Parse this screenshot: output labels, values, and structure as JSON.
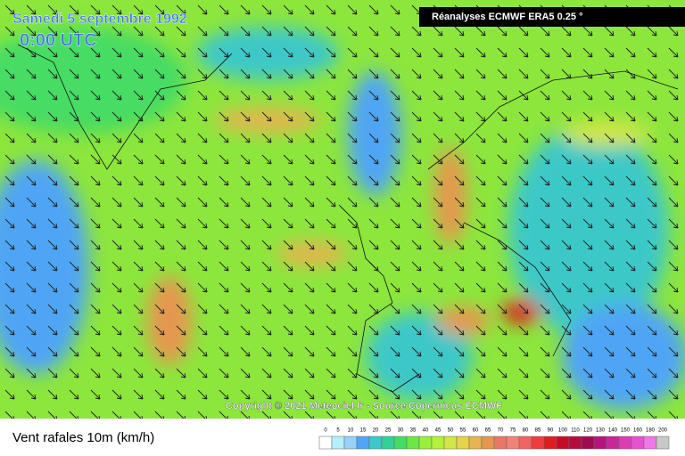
{
  "header": {
    "date": "Samedi 5 septembre 1992",
    "time": "0:00 UTC",
    "source_box": "Réanalyses ECMWF ERA5 0.25 °"
  },
  "map": {
    "copyright": "Copyright © 2021 Meteociel.fr - Source Copernicus ECMWF"
  },
  "legend": {
    "title": "Vent rafales 10m (km/h)",
    "values": [
      0,
      5,
      10,
      15,
      20,
      25,
      30,
      35,
      40,
      45,
      50,
      55,
      60,
      65,
      70,
      75,
      80,
      85,
      90,
      100,
      110,
      120,
      130,
      140,
      150,
      160,
      180,
      200
    ],
    "colors": [
      "#ffffff",
      "#b4f0fa",
      "#96d2fa",
      "#50a5f5",
      "#3cc8c8",
      "#32d296",
      "#46dc64",
      "#6ee646",
      "#96f03c",
      "#b4f03c",
      "#d2e646",
      "#e6d24b",
      "#e6b450",
      "#e69650",
      "#e67864",
      "#f08278",
      "#f06464",
      "#f03c3c",
      "#dc1e1e",
      "#c80a28",
      "#b40a3c",
      "#a00a50",
      "#b4147d",
      "#c82896",
      "#dc3cb4",
      "#e650d2",
      "#f078e6",
      "#c8c8c8"
    ]
  }
}
